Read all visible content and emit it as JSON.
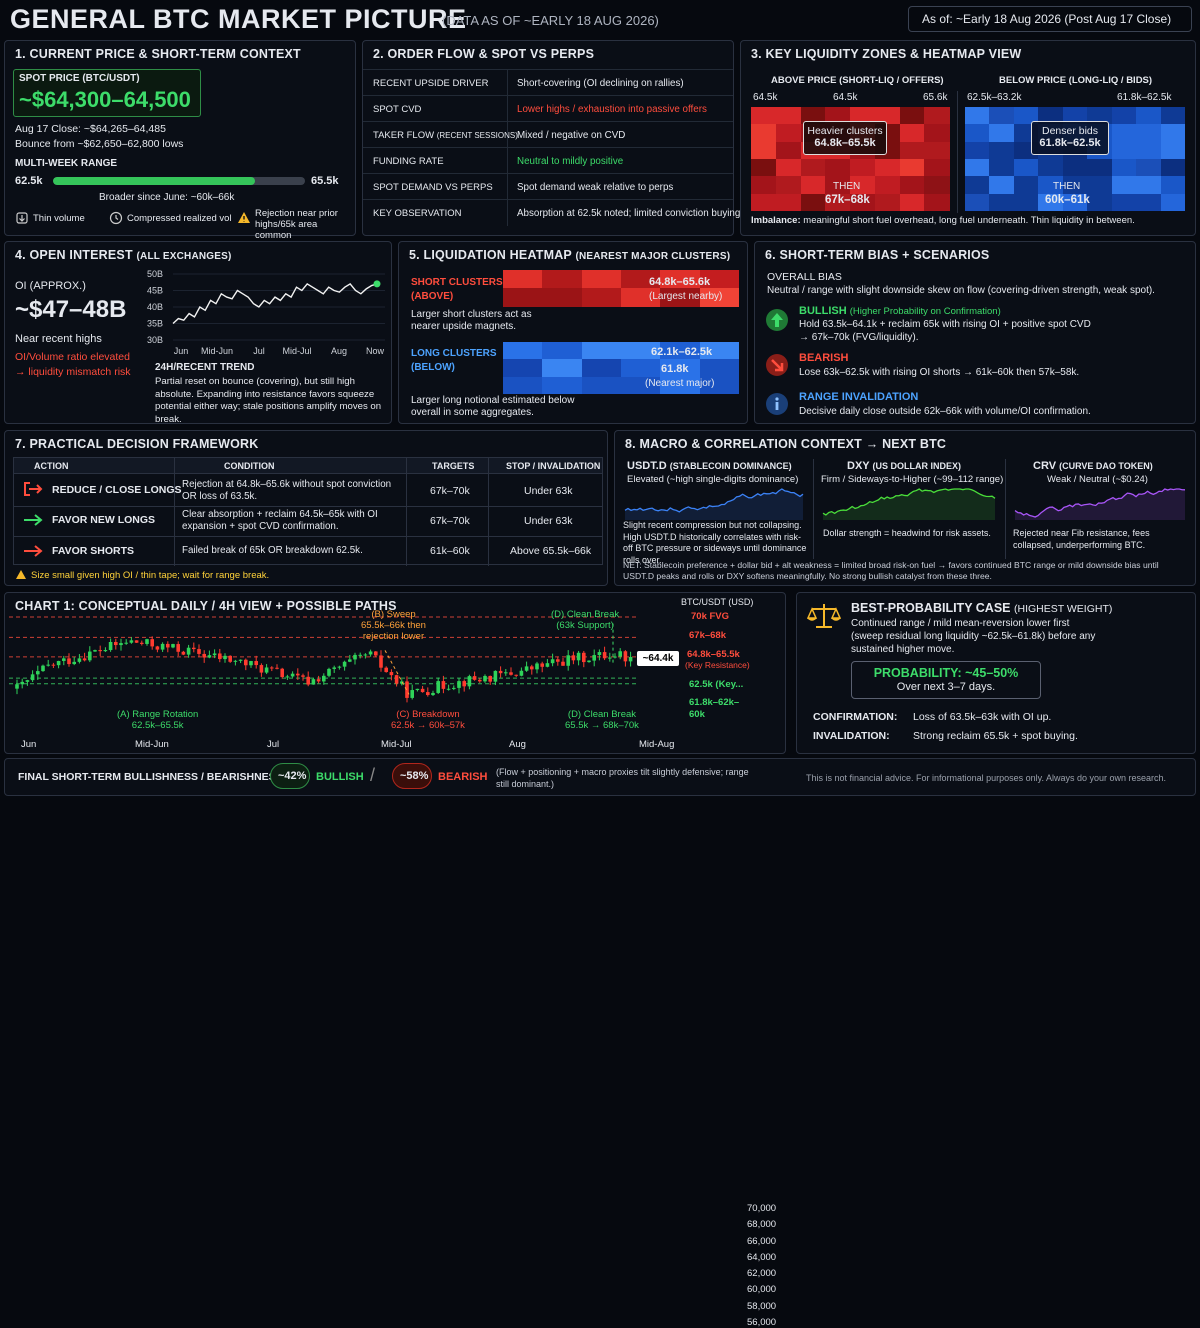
{
  "header": {
    "title": "GENERAL BTC MARKET PICTURE",
    "subtitle": "(DATA AS OF ~EARLY 18 AUG 2026)",
    "as_of": "As of: ~Early 18 Aug 2026 (Post Aug 17 Close)"
  },
  "p1": {
    "title": "1. CURRENT PRICE & SHORT-TERM CONTEXT",
    "spot_label": "SPOT PRICE (BTC/USDT)",
    "spot_value": "~$64,300–64,500",
    "close": "Aug 17 Close: ~$64,265–64,485",
    "bounce": "Bounce from ~$62,650–62,800 lows",
    "range_label": "MULTI-WEEK RANGE",
    "range_low": "62.5k",
    "range_high": "65.5k",
    "range_fill_pct": 80,
    "broader": "Broader since June: ~60k–66k",
    "notes": [
      {
        "icon": "volume-icon",
        "text": "Thin volume"
      },
      {
        "icon": "clock-icon",
        "text": "Compressed realized vol"
      },
      {
        "icon": "warning-icon",
        "text": "Rejection near prior highs/65k area common"
      }
    ]
  },
  "p2": {
    "title": "2. ORDER FLOW & SPOT VS PERPS",
    "rows": [
      {
        "label": "RECENT UPSIDE DRIVER",
        "value": "Short-covering (OI declining on rallies)",
        "tone": "white"
      },
      {
        "label": "SPOT CVD",
        "value": "Lower highs / exhaustion into passive offers",
        "tone": "red"
      },
      {
        "label": "TAKER FLOW",
        "label_sub": "(RECENT SESSIONS)",
        "value": "Mixed / negative on CVD",
        "tone": "white"
      },
      {
        "label": "FUNDING RATE",
        "value": "Neutral to mildly positive",
        "tone": "green"
      },
      {
        "label": "SPOT DEMAND VS PERPS",
        "value": "Spot demand weak relative to perps",
        "tone": "white"
      },
      {
        "label": "KEY OBSERVATION",
        "value": "Absorption at 62.5k noted; limited conviction buying",
        "tone": "white"
      }
    ]
  },
  "p3": {
    "title": "3. KEY LIQUIDITY ZONES & HEATMAP VIEW",
    "above_label": "ABOVE PRICE (SHORT-LIQ / OFFERS)",
    "below_label": "BELOW PRICE (LONG-LIQ / BIDS)",
    "above_ticks": [
      "64.5k",
      "64.5k",
      "65.6k"
    ],
    "below_ticks": [
      "62.5k–63.2k",
      "61.8k–62.5k"
    ],
    "above_box_title": "Heavier clusters",
    "above_box_value": "64.8k–65.5k",
    "below_box_title": "Denser bids",
    "below_box_value": "61.8k–62.5k",
    "then": "THEN",
    "above_then": "67k–68k",
    "below_then": "60k–61k",
    "imbalance_label": "Imbalance:",
    "imbalance_text": "meaningful short fuel overhead, long fuel underneath. Thin liquidity in between."
  },
  "p4": {
    "title": "4. OPEN INTEREST",
    "title_sub": "(ALL EXCHANGES)",
    "oi_label": "OI (APPROX.)",
    "oi_value": "~$47–48B",
    "near": "Near recent highs",
    "ratio_warn": "OI/Volume ratio elevated",
    "ratio_warn2": "→ liquidity mismatch risk",
    "trend_label": "24H/RECENT TREND",
    "trend_text": "Partial reset on bounce (covering), but still high absolute. Expanding into resistance favors squeeze potential either way; stale positions amplify moves on break.",
    "chart_data": {
      "type": "line",
      "y_ticks": [
        "50B",
        "45B",
        "40B",
        "35B",
        "30B"
      ],
      "x_ticks": [
        "Jun",
        "Mid-Jun",
        "Jul",
        "Mid-Jul",
        "Aug",
        "Now"
      ],
      "ylim": [
        30,
        50
      ],
      "values": [
        35,
        36.5,
        36,
        38,
        37,
        40,
        39,
        42,
        41,
        44,
        43,
        42.5,
        45,
        44,
        43,
        41,
        40,
        42,
        41,
        43,
        42,
        44,
        43,
        46,
        45,
        47,
        46,
        45,
        44,
        46,
        45,
        44.5,
        46,
        47,
        45,
        44,
        45.5,
        46.5,
        47
      ]
    }
  },
  "p5": {
    "title": "5. LIQUIDATION HEATMAP",
    "title_sub": "(NEAREST MAJOR CLUSTERS)",
    "short_label": "SHORT CLUSTERS",
    "short_label2": "(ABOVE)",
    "short_value": "64.8k–65.6k",
    "short_note": "(Largest nearby)",
    "short_text": "Larger short clusters act as nearer upside magnets.",
    "long_label": "LONG CLUSTERS",
    "long_label2": "(BELOW)",
    "long_value1": "62.1k–62.5k",
    "long_value2": "61.8k",
    "long_note": "(Nearest major)",
    "long_text": "Larger long notional estimated below overall in some aggregates."
  },
  "p6": {
    "title": "6. SHORT-TERM BIAS + SCENARIOS",
    "overall_label": "OVERALL BIAS",
    "overall_text": "Neutral / range with slight downside skew on flow (covering-driven strength, weak spot).",
    "scenarios": [
      {
        "icon": "up-arrow-icon",
        "title": "BULLISH",
        "title_sub": "(Higher Probability on Confirmation)",
        "text": "Hold 63.5k–64.1k + reclaim 65k with rising OI + positive spot CVD → 67k–70k (FVG/liquidity).",
        "tone": "green"
      },
      {
        "icon": "down-arrow-icon",
        "title": "BEARISH",
        "title_sub": "",
        "text": "Lose 63k–62.5k with rising OI shorts → 61k–60k then 57k–58k.",
        "tone": "red"
      },
      {
        "icon": "info-icon",
        "title": "RANGE INVALIDATION",
        "title_sub": "",
        "text": "Decisive daily close outside 62k–66k with volume/OI confirmation.",
        "tone": "blue"
      }
    ]
  },
  "p7": {
    "title": "7. PRACTICAL DECISION FRAMEWORK",
    "headers": [
      "ACTION",
      "CONDITION",
      "TARGETS",
      "STOP / INVALIDATION"
    ],
    "rows": [
      {
        "icon": "exit-arrow-icon",
        "action": "REDUCE / CLOSE LONGS",
        "condition": "Rejection at 64.8k–65.6k without spot conviction OR loss of 63.5k.",
        "targets": "67k–70k",
        "stop": "Under 63k",
        "tone": "red"
      },
      {
        "icon": "right-arrow-icon",
        "action": "FAVOR NEW LONGS",
        "condition": "Clear absorption + reclaim 64.5k–65k with OI expansion + spot CVD confirmation.",
        "targets": "67k–70k",
        "stop": "Under 63k",
        "tone": "green"
      },
      {
        "icon": "right-arrow-icon",
        "action": "FAVOR SHORTS",
        "condition": "Failed break of 65k OR breakdown 62.5k.",
        "targets": "61k–60k",
        "stop": "Above 65.5k–66k",
        "tone": "red"
      }
    ],
    "warn": "Size small given high OI / thin tape; wait for range break."
  },
  "p8": {
    "title": "8. MACRO & CORRELATION CONTEXT → NEXT BTC",
    "cols": [
      {
        "name": "USDT.D",
        "name_sub": "(STABLECOIN DOMINANCE)",
        "status": "Elevated (~high single-digits dominance)",
        "note": "Slight recent compression but not collapsing. High USDT.D historically correlates with risk-off BTC pressure or sideways until dominance rolls over.",
        "color": "#3b82f6"
      },
      {
        "name": "DXY",
        "name_sub": "(US DOLLAR INDEX)",
        "status": "Firm / Sideways-to-Higher (~99–112 range)",
        "note": "Dollar strength = headwind for risk assets.",
        "color": "#4ade3a"
      },
      {
        "name": "CRV",
        "name_sub": "(CURVE DAO TOKEN)",
        "status": "Weak / Neutral (~$0.24)",
        "note": "Rejected near Fib resistance, fees collapsed, underperforming BTC.",
        "color": "#a855f7"
      }
    ],
    "net": "NET: Stablecoin preference + dollar bid + alt weakness = limited broad risk-on fuel → favors continued BTC range or mild downside bias until USDT.D peaks and rolls or DXY softens meaningfully. No strong bullish catalyst from these three."
  },
  "chart1": {
    "title": "CHART 1: CONCEPTUAL DAILY / 4H VIEW + POSSIBLE PATHS",
    "axis_title": "BTC/USDT (USD)",
    "y_ticks": [
      "70,000",
      "68,000",
      "66,000",
      "64,000",
      "62,000",
      "60,000",
      "58,000",
      "56,000"
    ],
    "x_ticks": [
      "Jun",
      "Mid-Jun",
      "Jul",
      "Mid-Jul",
      "Aug",
      "Mid-Aug"
    ],
    "levels": [
      {
        "label": "70k FVG",
        "tone": "red"
      },
      {
        "label": "67k–68k",
        "tone": "red"
      },
      {
        "label": "64.8k–65.5k",
        "label2": "(Key Resistance)",
        "tone": "red"
      },
      {
        "label": "62.5k (Key...",
        "tone": "green"
      },
      {
        "label": "61.8k–62k–",
        "label2": "60k",
        "tone": "green"
      }
    ],
    "price_tag": "~64.4k",
    "annotations": [
      {
        "text": "(B) Sweep",
        "text2": "65.5k–66k then",
        "text3": "rejection lower",
        "tone": "orange"
      },
      {
        "text": "(D) Clean Break",
        "text2": "(63k Support)",
        "tone": "green"
      },
      {
        "text": "(A) Range Rotation",
        "text2": "62.5k–65.5k",
        "tone": "green"
      },
      {
        "text": "(C) Breakdown",
        "text2": "62.5k → 60k–57k",
        "tone": "red"
      },
      {
        "text": "(D) Clean Break",
        "text2": "65.5k → 68k–70k",
        "tone": "green"
      }
    ],
    "chart_data": {
      "type": "candlestick",
      "ylim": [
        56000,
        70000
      ]
    }
  },
  "best": {
    "title": "BEST-PROBABILITY CASE",
    "title_sub": "(HIGHEST WEIGHT)",
    "text": "Continued range / mild mean-reversion lower first (sweep residual long liquidity ~62.5k–61.8k) before any sustained higher move.",
    "prob": "PROBABILITY: ~45–50%",
    "prob2": "Over next 3–7 days.",
    "conf_label": "CONFIRMATION:",
    "conf_text": "Loss of 63.5k–63k with OI up.",
    "inv_label": "INVALIDATION:",
    "inv_text": "Strong reclaim 65.5k + spot buying."
  },
  "footer": {
    "label": "FINAL SHORT-TERM BULLISHNESS / BEARISHNESS:",
    "bull_pct": "~42%",
    "bull_label": "BULLISH",
    "bear_pct": "~58%",
    "bear_label": "BEARISH",
    "note": "(Flow + positioning + macro proxies tilt slightly defensive; range still dominant.)",
    "disclaimer": "This is not financial advice. For informational purposes only. Always do your own research.",
    "colors": {
      "bull": "#3ddc6a",
      "bear": "#ff4d3d"
    }
  }
}
